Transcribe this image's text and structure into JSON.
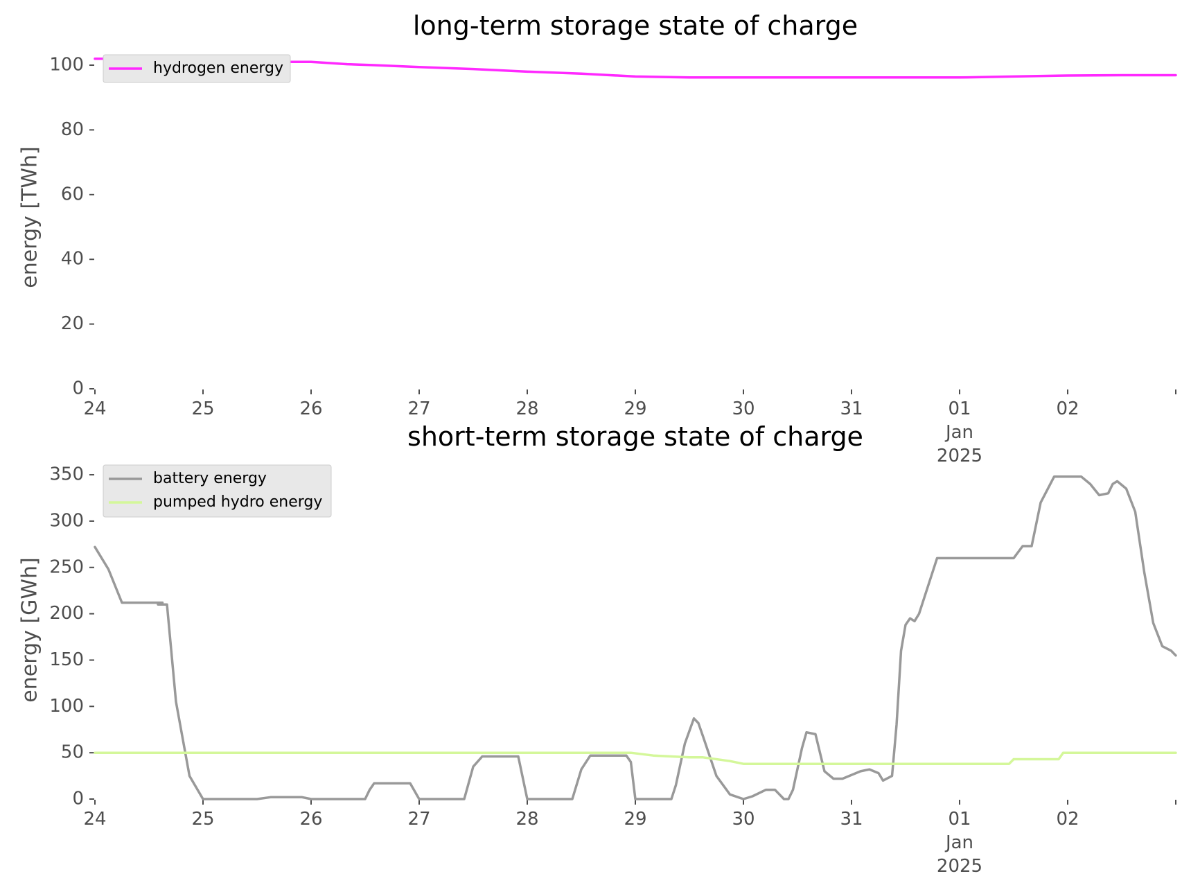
{
  "chart_data": [
    {
      "type": "line",
      "title": "long-term storage state of charge",
      "ylabel": "energy [TWh]",
      "xlabel": "",
      "ylim": [
        0,
        106
      ],
      "xlim": [
        "2024-12-24",
        "2025-01-03"
      ],
      "grid": false,
      "legend": "top-left",
      "x_ticks": [
        {
          "x": "2024-12-24",
          "label": "24"
        },
        {
          "x": "2024-12-25",
          "label": "25"
        },
        {
          "x": "2024-12-26",
          "label": "26"
        },
        {
          "x": "2024-12-27",
          "label": "27"
        },
        {
          "x": "2024-12-28",
          "label": "28"
        },
        {
          "x": "2024-12-29",
          "label": "29"
        },
        {
          "x": "2024-12-30",
          "label": "30"
        },
        {
          "x": "2024-12-31",
          "label": "31"
        },
        {
          "x": "2025-01-01",
          "label": "01",
          "sub": [
            "Jan",
            "2025"
          ]
        },
        {
          "x": "2025-01-02",
          "label": "02"
        },
        {
          "x": "2025-01-03",
          "label": ""
        }
      ],
      "y_ticks": [
        0,
        20,
        40,
        60,
        80,
        100
      ],
      "series": [
        {
          "name": "hydrogen energy",
          "color": "#ff29ff",
          "x": [
            "2024-12-24 00:00",
            "2024-12-24 12:00",
            "2024-12-25 00:00",
            "2024-12-25 12:00",
            "2024-12-26 00:00",
            "2024-12-26 08:00",
            "2024-12-26 14:00",
            "2024-12-27 00:00",
            "2024-12-27 12:00",
            "2024-12-28 00:00",
            "2024-12-28 12:00",
            "2024-12-29 00:00",
            "2024-12-29 12:00",
            "2024-12-30 00:00",
            "2024-12-31 00:00",
            "2025-01-01 00:00",
            "2025-01-01 12:00",
            "2025-01-02 00:00",
            "2025-01-02 12:00",
            "2025-01-03 00:00"
          ],
          "y": [
            102,
            102,
            101.5,
            101,
            101,
            100.3,
            100,
            99.4,
            98.8,
            98,
            97.4,
            96.5,
            96.2,
            96.2,
            96.2,
            96.2,
            96.5,
            96.8,
            96.9,
            96.9
          ]
        }
      ]
    },
    {
      "type": "line",
      "title": "short-term storage state of charge",
      "ylabel": "energy [GWh]",
      "xlabel": "",
      "ylim": [
        0,
        365
      ],
      "xlim": [
        "2024-12-24",
        "2025-01-03"
      ],
      "grid": false,
      "legend": "top-left",
      "x_ticks": [
        {
          "x": "2024-12-24",
          "label": "24"
        },
        {
          "x": "2024-12-25",
          "label": "25"
        },
        {
          "x": "2024-12-26",
          "label": "26"
        },
        {
          "x": "2024-12-27",
          "label": "27"
        },
        {
          "x": "2024-12-28",
          "label": "28"
        },
        {
          "x": "2024-12-29",
          "label": "29"
        },
        {
          "x": "2024-12-30",
          "label": "30"
        },
        {
          "x": "2024-12-31",
          "label": "31"
        },
        {
          "x": "2025-01-01",
          "label": "01",
          "sub": [
            "Jan",
            "2025"
          ]
        },
        {
          "x": "2025-01-02",
          "label": "02"
        },
        {
          "x": "2025-01-03",
          "label": ""
        }
      ],
      "y_ticks": [
        0,
        50,
        100,
        150,
        200,
        250,
        300,
        350
      ],
      "series": [
        {
          "name": "battery energy",
          "color": "#999999",
          "x": [
            "2024-12-24 00:00",
            "2024-12-24 03:00",
            "2024-12-24 06:00",
            "2024-12-24 09:00",
            "2024-12-24 12:00",
            "2024-12-24 15:00",
            "2024-12-24 14:00",
            "2024-12-24 16:00",
            "2024-12-24 18:00",
            "2024-12-24 21:00",
            "2024-12-25 00:00",
            "2024-12-25 03:00",
            "2024-12-25 12:00",
            "2024-12-25 15:00",
            "2024-12-25 22:00",
            "2024-12-26 00:00",
            "2024-12-26 12:00",
            "2024-12-26 13:00",
            "2024-12-26 14:00",
            "2024-12-26 16:00",
            "2024-12-26 22:00",
            "2024-12-27 00:00",
            "2024-12-27 10:00",
            "2024-12-27 12:00",
            "2024-12-27 14:00",
            "2024-12-27 22:00",
            "2024-12-28 00:00",
            "2024-12-28 10:00",
            "2024-12-28 12:00",
            "2024-12-28 14:00",
            "2024-12-28 22:00",
            "2024-12-28 23:00",
            "2024-12-29 00:00",
            "2024-12-29 01:00",
            "2024-12-29 08:00",
            "2024-12-29 09:00",
            "2024-12-29 11:00",
            "2024-12-29 13:00",
            "2024-12-29 14:00",
            "2024-12-29 15:00",
            "2024-12-29 18:00",
            "2024-12-29 21:00",
            "2024-12-30 00:00",
            "2024-12-30 02:00",
            "2024-12-30 05:00",
            "2024-12-30 07:00",
            "2024-12-30 09:00",
            "2024-12-30 10:00",
            "2024-12-30 11:00",
            "2024-12-30 13:00",
            "2024-12-30 14:00",
            "2024-12-30 16:00",
            "2024-12-30 18:00",
            "2024-12-30 20:00",
            "2024-12-30 22:00",
            "2024-12-31 00:00",
            "2024-12-31 02:00",
            "2024-12-31 04:00",
            "2024-12-31 06:00",
            "2024-12-31 07:00",
            "2024-12-31 09:00",
            "2024-12-31 10:00",
            "2024-12-31 11:00",
            "2024-12-31 12:00",
            "2024-12-31 13:00",
            "2024-12-31 14:00",
            "2024-12-31 15:00",
            "2024-12-31 17:00",
            "2024-12-31 19:00",
            "2024-12-31 21:00",
            "2024-12-31 23:00",
            "2025-01-01 00:00",
            "2025-01-01 12:00",
            "2025-01-01 14:00",
            "2025-01-01 16:00",
            "2025-01-01 18:00",
            "2025-01-01 21:00",
            "2025-01-01 23:00",
            "2025-01-02 00:00",
            "2025-01-02 03:00",
            "2025-01-02 05:00",
            "2025-01-02 07:00",
            "2025-01-02 09:00",
            "2025-01-02 10:00",
            "2025-01-02 11:00",
            "2025-01-02 13:00",
            "2025-01-02 15:00",
            "2025-01-02 17:00",
            "2025-01-02 19:00",
            "2025-01-02 21:00",
            "2025-01-02 23:00",
            "2025-01-03 00:00"
          ],
          "y": [
            272,
            248,
            212,
            212,
            212,
            212,
            210,
            210,
            105,
            25,
            0,
            0,
            0,
            2,
            2,
            0,
            0,
            10,
            17,
            17,
            17,
            0,
            0,
            35,
            46,
            46,
            0,
            0,
            32,
            47,
            47,
            40,
            0,
            0,
            0,
            15,
            60,
            87,
            82,
            68,
            25,
            5,
            0,
            3,
            10,
            10,
            0,
            0,
            10,
            55,
            72,
            70,
            30,
            22,
            22,
            26,
            30,
            32,
            28,
            20,
            25,
            80,
            160,
            188,
            195,
            192,
            200,
            230,
            260,
            260,
            260,
            260,
            260,
            273,
            273,
            320,
            348,
            348,
            348,
            348,
            340,
            328,
            330,
            340,
            343,
            335,
            310,
            245,
            190,
            165,
            160,
            155
          ],
          "x_note": "",
          "ylim_note": ""
        },
        {
          "name": "pumped hydro energy",
          "color": "#d4f79a",
          "x": [
            "2024-12-24 00:00",
            "2024-12-25 00:00",
            "2024-12-26 00:00",
            "2024-12-27 00:00",
            "2024-12-28 00:00",
            "2024-12-28 23:00",
            "2024-12-29 04:00",
            "2024-12-29 12:00",
            "2024-12-29 15:00",
            "2024-12-29 21:00",
            "2024-12-30 00:00",
            "2024-12-31 00:00",
            "2025-01-01 00:00",
            "2025-01-01 11:00",
            "2025-01-01 12:00",
            "2025-01-01 22:00",
            "2025-01-01 23:00",
            "2025-01-03 00:00"
          ],
          "y": [
            50,
            50,
            50,
            50,
            50,
            50,
            47,
            45,
            45,
            41,
            38,
            38,
            38,
            38,
            43,
            43,
            50,
            50
          ]
        }
      ]
    }
  ]
}
